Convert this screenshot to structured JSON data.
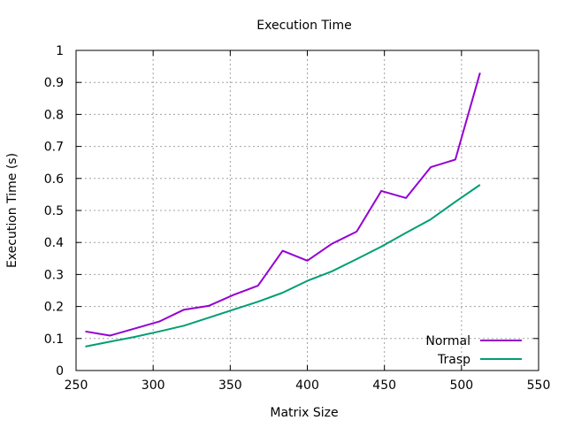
{
  "chart_data": {
    "type": "line",
    "title": "Execution Time",
    "xlabel": "Matrix Size",
    "ylabel": "Execution Time (s)",
    "xlim": [
      250,
      550
    ],
    "ylim": [
      0,
      1
    ],
    "x_ticks": [
      250,
      300,
      350,
      400,
      450,
      500,
      550
    ],
    "y_ticks": [
      0,
      0.1,
      0.2,
      0.3,
      0.4,
      0.5,
      0.6,
      0.7,
      0.8,
      0.9,
      1
    ],
    "x_tick_labels": [
      "250",
      "300",
      "350",
      "400",
      "450",
      "500",
      "550"
    ],
    "y_tick_labels": [
      "0",
      "0.1",
      "0.2",
      "0.3",
      "0.4",
      "0.5",
      "0.6",
      "0.7",
      "0.8",
      "0.9",
      "1"
    ],
    "grid": true,
    "legend_position": "bottom-right",
    "x": [
      256,
      272,
      288,
      304,
      320,
      336,
      352,
      368,
      384,
      400,
      416,
      432,
      448,
      464,
      480,
      496,
      512
    ],
    "series": [
      {
        "name": "Normal",
        "color": "#9400d3",
        "values": [
          0.122,
          0.109,
          0.131,
          0.153,
          0.19,
          0.202,
          0.236,
          0.265,
          0.374,
          0.343,
          0.396,
          0.434,
          0.561,
          0.539,
          0.635,
          0.659,
          0.93
        ]
      },
      {
        "name": "Trasp",
        "color": "#009e73",
        "values": [
          0.075,
          0.09,
          0.105,
          0.122,
          0.14,
          0.165,
          0.19,
          0.215,
          0.243,
          0.28,
          0.31,
          0.348,
          0.387,
          0.43,
          0.472,
          0.527,
          0.58
        ]
      }
    ]
  }
}
